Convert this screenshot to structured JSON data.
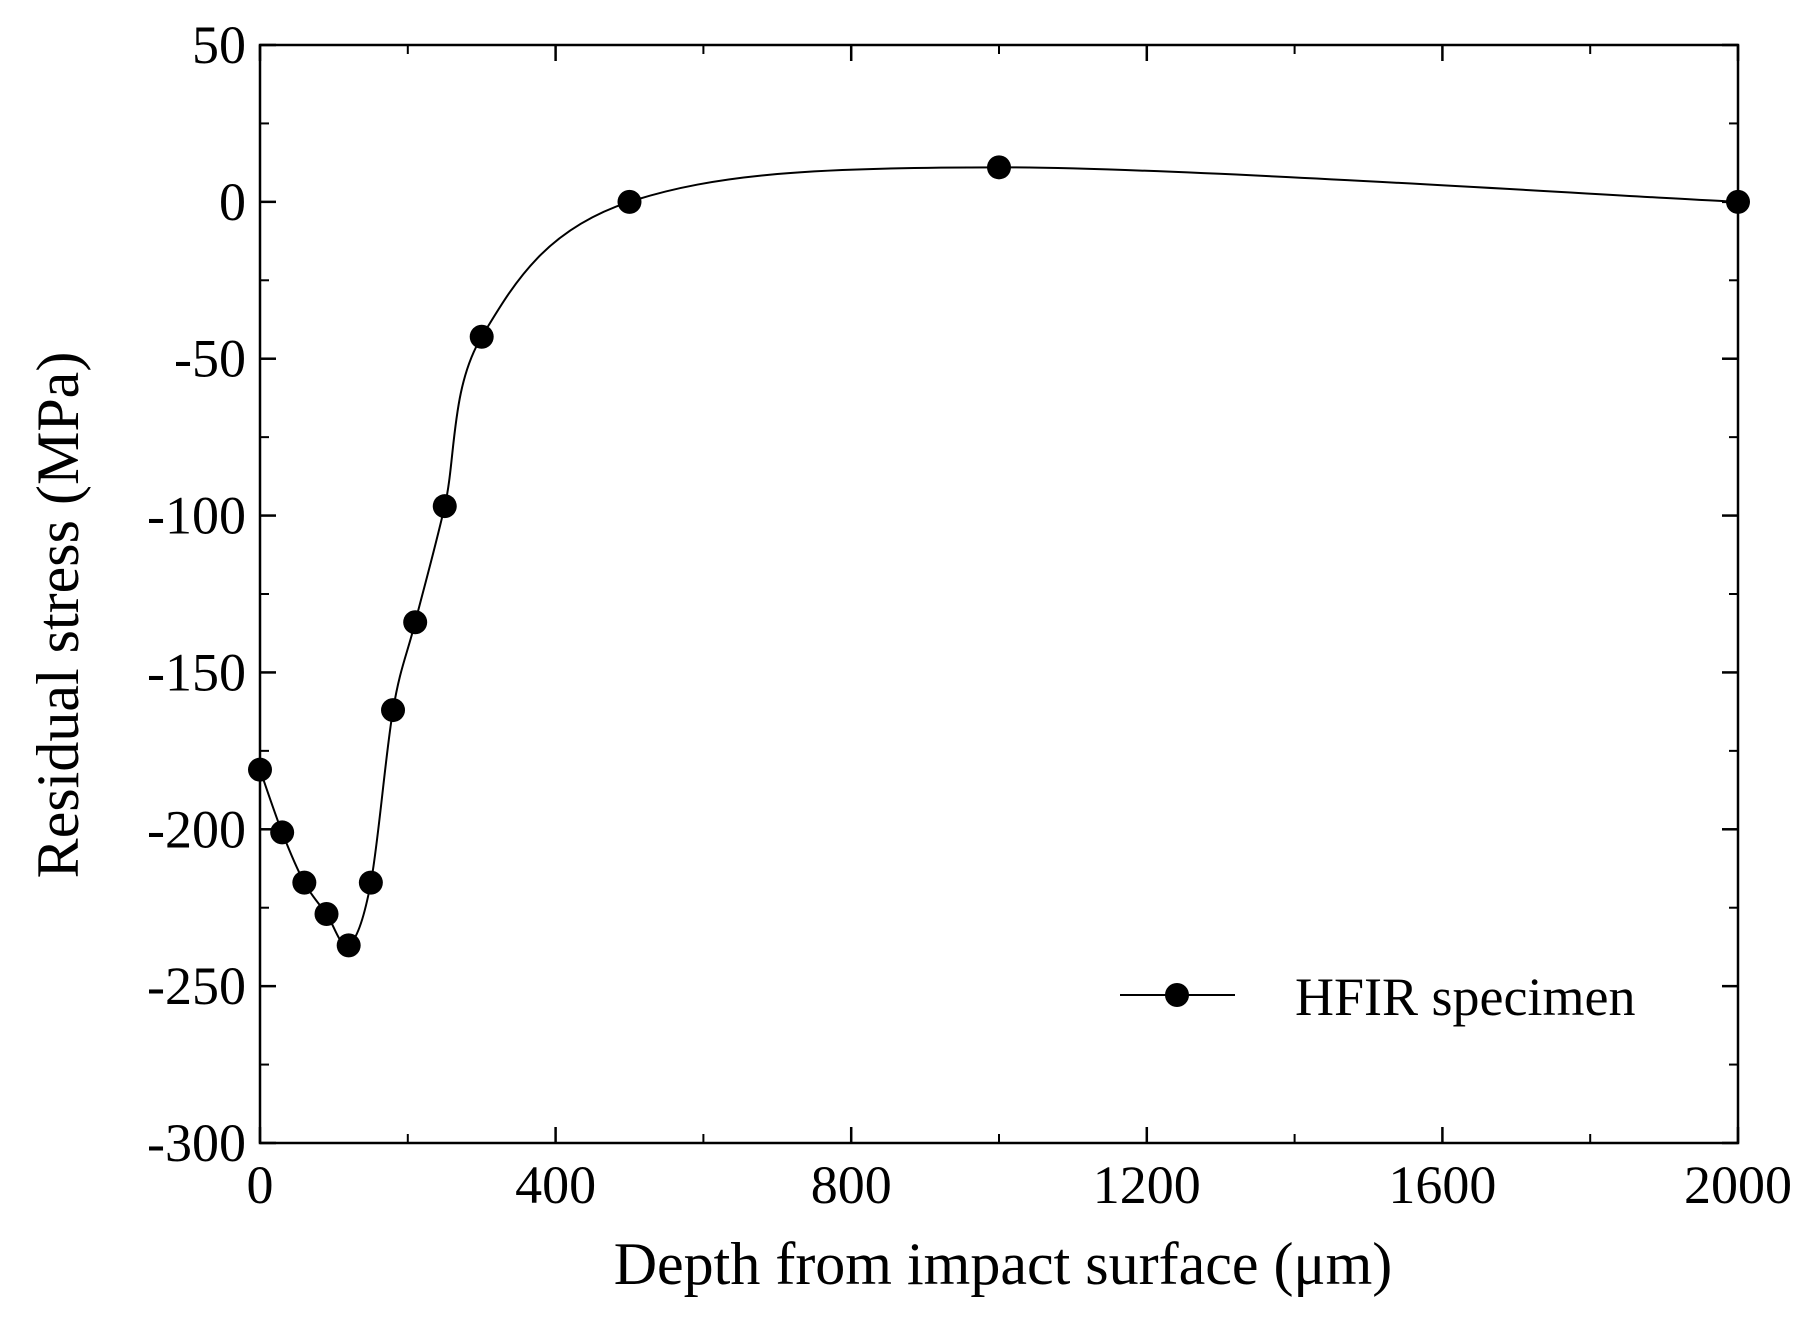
{
  "chart_data": {
    "type": "line",
    "title": "",
    "xlabel": "Depth from impact surface (μm)",
    "ylabel": "Residual stress (MPa)",
    "xlim": [
      0,
      2000
    ],
    "ylim": [
      -300,
      50
    ],
    "xticks": [
      0,
      400,
      800,
      1200,
      1600,
      2000
    ],
    "xtick_labels": [
      "0",
      "400",
      "800",
      "1200",
      "1600",
      "2000"
    ],
    "xminor_ticks": [
      200,
      600,
      1000,
      1400,
      1800
    ],
    "yticks": [
      50,
      0,
      -50,
      -100,
      -150,
      -200,
      -250,
      -300
    ],
    "ytick_labels": [
      "50",
      "0",
      "-50",
      "-100",
      "-150",
      "-200",
      "-250",
      "-300"
    ],
    "yminor_ticks": [
      25,
      -25,
      -75,
      -125,
      -175,
      -225,
      -275
    ],
    "legend": {
      "position": "bottom-right",
      "entries": [
        "HFIR specimen"
      ]
    },
    "grid": false,
    "series": [
      {
        "name": "HFIR specimen",
        "color": "#000000",
        "marker": "filled-circle",
        "x": [
          0,
          30,
          60,
          90,
          120,
          150,
          180,
          210,
          250,
          300,
          500,
          1000,
          2000
        ],
        "y": [
          -181,
          -201,
          -217,
          -227,
          -237,
          -217,
          -162,
          -134,
          -97,
          -43,
          0,
          11,
          0
        ]
      }
    ]
  }
}
